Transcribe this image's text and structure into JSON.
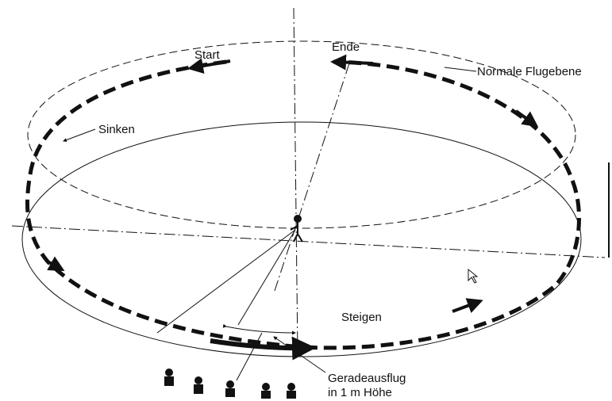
{
  "labels": {
    "start": "Start",
    "ende": "Ende",
    "normal": "Normale Flugebene",
    "sinken": "Sinken",
    "steigen": "Steigen",
    "gerade1": "Geradeausflug",
    "gerade2": "in 1 m Höhe"
  }
}
